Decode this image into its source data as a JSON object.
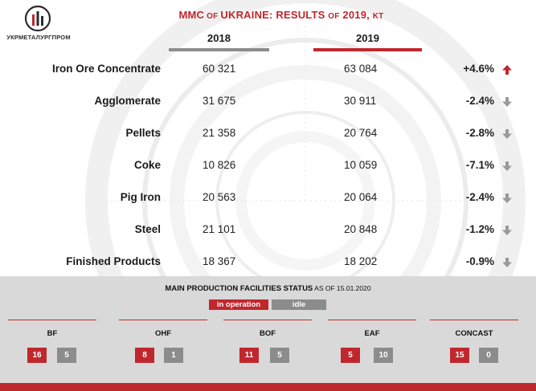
{
  "logo": {
    "text": "УКРМЕТАЛУРГПРОМ",
    "icon": "factory-chimneys-icon"
  },
  "title": {
    "main": "MMC",
    "of": " OF ",
    "main2": "UKRAINE: RESULTS ",
    "of2": "OF",
    "year": " 2019, ",
    "unit": "KT"
  },
  "years": {
    "y2018": "2018",
    "y2019": "2019"
  },
  "rows": [
    {
      "name": "Iron Ore Concentrate",
      "v2018": "60 321",
      "v2019": "63 084",
      "change": "+4.6%",
      "trend": "up"
    },
    {
      "name": "Agglomerate",
      "v2018": "31 675",
      "v2019": "30 911",
      "change": "-2.4%",
      "trend": "down"
    },
    {
      "name": "Pellets",
      "v2018": "21 358",
      "v2019": "20 764",
      "change": "-2.8%",
      "trend": "down"
    },
    {
      "name": "Coke",
      "v2018": "10 826",
      "v2019": "10 059",
      "change": "-7.1%",
      "trend": "down"
    },
    {
      "name": "Pig Iron",
      "v2018": "20 563",
      "v2019": "20 064",
      "change": "-2.4%",
      "trend": "down"
    },
    {
      "name": "Steel",
      "v2018": "21 101",
      "v2019": "20 848",
      "change": "-1.2%",
      "trend": "down"
    },
    {
      "name": "Finished Products",
      "v2018": "18 367",
      "v2019": "18 202",
      "change": "-0.9%",
      "trend": "down"
    }
  ],
  "status": {
    "title": "MAIN PRODUCTION FACILITIES STATUS",
    "as_of": " AS OF 15.01.2020",
    "legend_op": "in operation",
    "legend_idle": "idle",
    "facilities": [
      {
        "name": "BF",
        "op": "16",
        "idle": "5"
      },
      {
        "name": "OHF",
        "op": "8",
        "idle": "1"
      },
      {
        "name": "BOF",
        "op": "11",
        "idle": "5"
      },
      {
        "name": "EAF",
        "op": "5",
        "idle": "10"
      },
      {
        "name": "CONCAST",
        "op": "15",
        "idle": "0"
      }
    ]
  },
  "colors": {
    "accent": "#c0272d",
    "idle": "#8c8c8c",
    "panel": "#d9d9d9",
    "arrow_down": "#9a9a9a"
  }
}
